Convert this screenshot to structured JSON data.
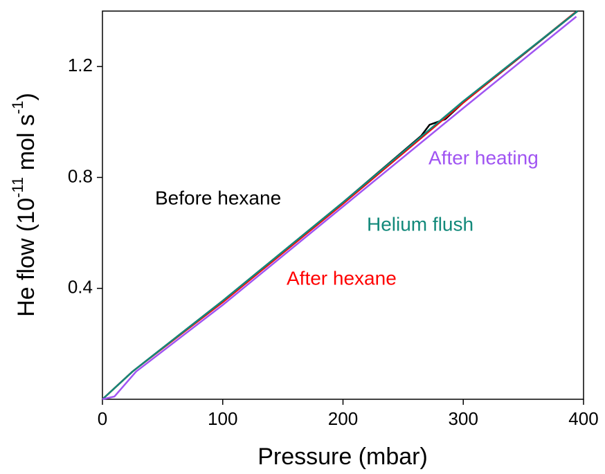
{
  "chart_data": {
    "type": "line",
    "x_label": "Pressure (mbar)",
    "y_label_parts": [
      "He flow (10",
      "-11",
      " mol s",
      "-1",
      ")"
    ],
    "xlim": [
      0,
      400
    ],
    "ylim": [
      0,
      1.4
    ],
    "xticks": [
      0,
      100,
      200,
      300,
      400
    ],
    "yticks": [
      0.4,
      0.8,
      1.2
    ],
    "series": [
      {
        "name": "Before hexane",
        "color": "#000000",
        "x": [
          0,
          25,
          100,
          200,
          265,
          272,
          285,
          300,
          395
        ],
        "values": [
          0,
          0.1,
          0.355,
          0.71,
          0.95,
          0.99,
          1.01,
          1.07,
          1.4
        ]
      },
      {
        "name": "After hexane",
        "color": "#ff0000",
        "x": [
          0,
          25,
          100,
          200,
          300,
          393
        ],
        "values": [
          0,
          0.1,
          0.35,
          0.705,
          1.07,
          1.395
        ]
      },
      {
        "name": "Helium flush",
        "color": "#12897a",
        "x": [
          0,
          25,
          100,
          200,
          300,
          395
        ],
        "values": [
          0,
          0.1,
          0.355,
          0.71,
          1.075,
          1.4
        ]
      },
      {
        "name": "After heating",
        "color": "#a054f2",
        "x": [
          0,
          10,
          28,
          100,
          200,
          300,
          394
        ],
        "values": [
          0,
          0.01,
          0.1,
          0.34,
          0.695,
          1.05,
          1.38
        ]
      }
    ]
  }
}
